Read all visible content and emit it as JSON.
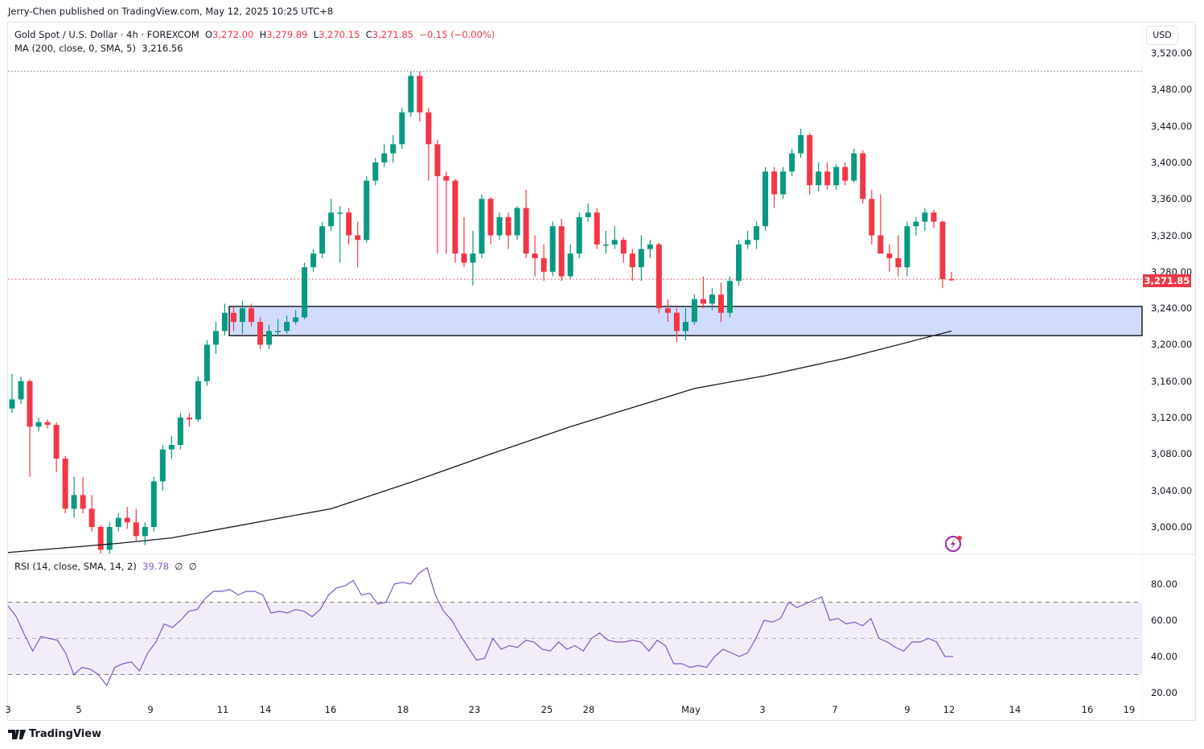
{
  "published": "Jerry-Chen published on TradingView.com, May 12, 2025 10:25 UTC+8",
  "symbol": {
    "name": "Gold Spot / U.S. Dollar · 4h · FOREXCOM",
    "o_label": "O",
    "o": "3,272.00",
    "h_label": "H",
    "h": "3,279.89",
    "l_label": "L",
    "l": "3,270.15",
    "c_label": "C",
    "c": "3,271.85",
    "change": "−0.15 (−0.00%)"
  },
  "ma_legend": {
    "label": "MA (200, close, 0, SMA, 5)",
    "value": "3,216.56"
  },
  "rsi_legend": {
    "label": "RSI (14, close, SMA, 14, 2)",
    "value": "39.78",
    "extra1": "∅",
    "extra2": "∅"
  },
  "currency": "USD",
  "last_price": "3,271.85",
  "footer": "TradingView",
  "colors": {
    "up": "#089981",
    "down": "#f23645",
    "ma": "#131722",
    "rsi": "#7e57c2",
    "zone": "#d1dcfd"
  },
  "icons": {
    "alert": "lightning-bolt-icon",
    "logo": "tradingview-logo-icon"
  },
  "chart_data": {
    "type": "candlestick",
    "price_axis": {
      "ticks": [
        "3,520.00",
        "3,480.00",
        "3,440.00",
        "3,400.00",
        "3,360.00",
        "3,320.00",
        "3,280.00",
        "3,240.00",
        "3,200.00",
        "3,160.00",
        "3,120.00",
        "3,080.00",
        "3,040.00",
        "3,000.00"
      ],
      "range": [
        2970,
        3530
      ]
    },
    "time_axis": {
      "ticks": [
        "3",
        "5",
        "9",
        "11",
        "14",
        "16",
        "18",
        "23",
        "25",
        "28",
        "May",
        "3",
        "7",
        "9",
        "12",
        "14",
        "16",
        "19"
      ]
    },
    "resistance_level": 3500,
    "support_zone": [
      3210,
      3242
    ],
    "ohlc": [
      [
        3130,
        3168,
        3125,
        3140
      ],
      [
        3140,
        3165,
        3135,
        3160
      ],
      [
        3160,
        3162,
        3055,
        3110
      ],
      [
        3110,
        3120,
        3105,
        3115
      ],
      [
        3115,
        3118,
        3108,
        3112
      ],
      [
        3112,
        3115,
        3060,
        3075
      ],
      [
        3075,
        3078,
        3015,
        3020
      ],
      [
        3020,
        3055,
        3010,
        3035
      ],
      [
        3035,
        3055,
        3015,
        3020
      ],
      [
        3020,
        3035,
        2995,
        3000
      ],
      [
        3000,
        3002,
        2957,
        2975
      ],
      [
        2975,
        3005,
        2965,
        3000
      ],
      [
        3000,
        3015,
        2995,
        3010
      ],
      [
        3010,
        3022,
        2998,
        3005
      ],
      [
        3005,
        3020,
        2985,
        2990
      ],
      [
        2990,
        3005,
        2980,
        3000
      ],
      [
        3000,
        3055,
        2995,
        3050
      ],
      [
        3050,
        3090,
        3040,
        3085
      ],
      [
        3085,
        3100,
        3075,
        3090
      ],
      [
        3090,
        3125,
        3085,
        3120
      ],
      [
        3120,
        3125,
        3110,
        3118
      ],
      [
        3118,
        3165,
        3115,
        3160
      ],
      [
        3160,
        3205,
        3155,
        3200
      ],
      [
        3200,
        3225,
        3190,
        3215
      ],
      [
        3215,
        3245,
        3210,
        3235
      ],
      [
        3235,
        3242,
        3215,
        3225
      ],
      [
        3225,
        3248,
        3212,
        3240
      ],
      [
        3240,
        3245,
        3220,
        3225
      ],
      [
        3225,
        3230,
        3195,
        3200
      ],
      [
        3200,
        3222,
        3195,
        3215
      ],
      [
        3215,
        3228,
        3210,
        3215
      ],
      [
        3215,
        3232,
        3212,
        3225
      ],
      [
        3225,
        3238,
        3222,
        3230
      ],
      [
        3230,
        3290,
        3228,
        3285
      ],
      [
        3285,
        3305,
        3280,
        3300
      ],
      [
        3300,
        3335,
        3295,
        3330
      ],
      [
        3330,
        3360,
        3325,
        3345
      ],
      [
        3345,
        3352,
        3290,
        3345
      ],
      [
        3345,
        3350,
        3310,
        3320
      ],
      [
        3320,
        3335,
        3285,
        3315
      ],
      [
        3315,
        3385,
        3312,
        3380
      ],
      [
        3380,
        3405,
        3375,
        3400
      ],
      [
        3400,
        3420,
        3395,
        3410
      ],
      [
        3410,
        3430,
        3400,
        3420
      ],
      [
        3420,
        3460,
        3415,
        3455
      ],
      [
        3455,
        3500,
        3450,
        3495
      ],
      [
        3495,
        3500,
        3445,
        3455
      ],
      [
        3455,
        3460,
        3380,
        3420
      ],
      [
        3420,
        3425,
        3300,
        3385
      ],
      [
        3385,
        3390,
        3300,
        3380
      ],
      [
        3380,
        3382,
        3290,
        3300
      ],
      [
        3300,
        3340,
        3285,
        3290
      ],
      [
        3290,
        3325,
        3265,
        3300
      ],
      [
        3300,
        3365,
        3295,
        3360
      ],
      [
        3360,
        3362,
        3310,
        3320
      ],
      [
        3320,
        3345,
        3315,
        3340
      ],
      [
        3340,
        3345,
        3305,
        3320
      ],
      [
        3320,
        3352,
        3315,
        3350
      ],
      [
        3350,
        3370,
        3295,
        3300
      ],
      [
        3300,
        3320,
        3275,
        3295
      ],
      [
        3295,
        3310,
        3270,
        3280
      ],
      [
        3280,
        3335,
        3275,
        3330
      ],
      [
        3330,
        3338,
        3270,
        3275
      ],
      [
        3275,
        3310,
        3272,
        3300
      ],
      [
        3300,
        3345,
        3295,
        3340
      ],
      [
        3340,
        3355,
        3335,
        3345
      ],
      [
        3345,
        3350,
        3305,
        3310
      ],
      [
        3310,
        3325,
        3300,
        3310
      ],
      [
        3310,
        3330,
        3305,
        3315
      ],
      [
        3315,
        3318,
        3290,
        3300
      ],
      [
        3300,
        3305,
        3270,
        3285
      ],
      [
        3285,
        3320,
        3270,
        3305
      ],
      [
        3305,
        3315,
        3295,
        3310
      ],
      [
        3310,
        3312,
        3235,
        3240
      ],
      [
        3240,
        3250,
        3225,
        3235
      ],
      [
        3235,
        3240,
        3203,
        3215
      ],
      [
        3215,
        3240,
        3205,
        3225
      ],
      [
        3225,
        3255,
        3222,
        3250
      ],
      [
        3250,
        3275,
        3240,
        3245
      ],
      [
        3245,
        3262,
        3238,
        3255
      ],
      [
        3255,
        3268,
        3225,
        3235
      ],
      [
        3235,
        3275,
        3230,
        3270
      ],
      [
        3270,
        3315,
        3265,
        3310
      ],
      [
        3310,
        3325,
        3305,
        3315
      ],
      [
        3315,
        3335,
        3305,
        3330
      ],
      [
        3330,
        3395,
        3325,
        3390
      ],
      [
        3390,
        3395,
        3350,
        3365
      ],
      [
        3365,
        3395,
        3360,
        3390
      ],
      [
        3390,
        3415,
        3385,
        3410
      ],
      [
        3410,
        3437,
        3405,
        3430
      ],
      [
        3430,
        3432,
        3365,
        3375
      ],
      [
        3375,
        3400,
        3368,
        3390
      ],
      [
        3390,
        3400,
        3370,
        3375
      ],
      [
        3375,
        3398,
        3370,
        3395
      ],
      [
        3395,
        3400,
        3375,
        3380
      ],
      [
        3380,
        3415,
        3378,
        3410
      ],
      [
        3410,
        3413,
        3355,
        3360
      ],
      [
        3360,
        3370,
        3310,
        3320
      ],
      [
        3320,
        3365,
        3300,
        3300
      ],
      [
        3300,
        3310,
        3280,
        3295
      ],
      [
        3295,
        3320,
        3275,
        3285
      ],
      [
        3285,
        3335,
        3275,
        3330
      ],
      [
        3330,
        3340,
        3320,
        3335
      ],
      [
        3335,
        3350,
        3325,
        3345
      ],
      [
        3345,
        3348,
        3328,
        3335
      ],
      [
        3335,
        3336,
        3262,
        3272
      ],
      [
        3272,
        3280,
        3270,
        3271.85
      ]
    ],
    "ma200": [
      [
        0,
        2972
      ],
      [
        12,
        2982
      ],
      [
        18,
        2988
      ],
      [
        36,
        3020
      ],
      [
        45,
        3049
      ],
      [
        54,
        3080
      ],
      [
        63,
        3110
      ],
      [
        72,
        3137
      ],
      [
        77,
        3152
      ],
      [
        85,
        3166
      ],
      [
        94,
        3185
      ],
      [
        106,
        3215
      ]
    ],
    "rsi": {
      "range": [
        15,
        95
      ],
      "levels": [
        70,
        50,
        30
      ],
      "ticks": [
        "80.00",
        "60.00",
        "40.00",
        "20.00"
      ],
      "values": [
        68,
        62,
        52,
        43,
        51,
        50,
        49,
        42,
        30,
        34,
        33,
        30,
        24,
        34,
        36,
        37,
        32,
        42,
        48,
        58,
        56,
        60,
        65,
        66,
        72,
        76,
        76,
        77,
        74,
        76,
        76,
        74,
        64,
        65,
        64,
        66,
        65,
        62,
        66,
        74,
        78,
        79,
        82,
        74,
        75,
        69,
        70,
        80,
        81,
        80,
        86,
        89,
        74,
        65,
        60,
        52,
        45,
        38,
        39,
        50,
        44,
        46,
        45,
        49,
        48,
        44,
        43,
        48,
        44,
        46,
        43,
        50,
        53,
        49,
        48,
        48,
        49,
        48,
        43,
        49,
        46,
        36,
        36,
        34,
        35,
        34,
        40,
        44,
        42,
        40,
        42,
        50,
        60,
        59,
        61,
        70,
        67,
        69,
        71,
        73,
        60,
        61,
        58,
        59,
        57,
        61,
        50,
        48,
        45,
        43,
        48,
        48,
        50,
        48,
        40,
        40
      ]
    }
  }
}
